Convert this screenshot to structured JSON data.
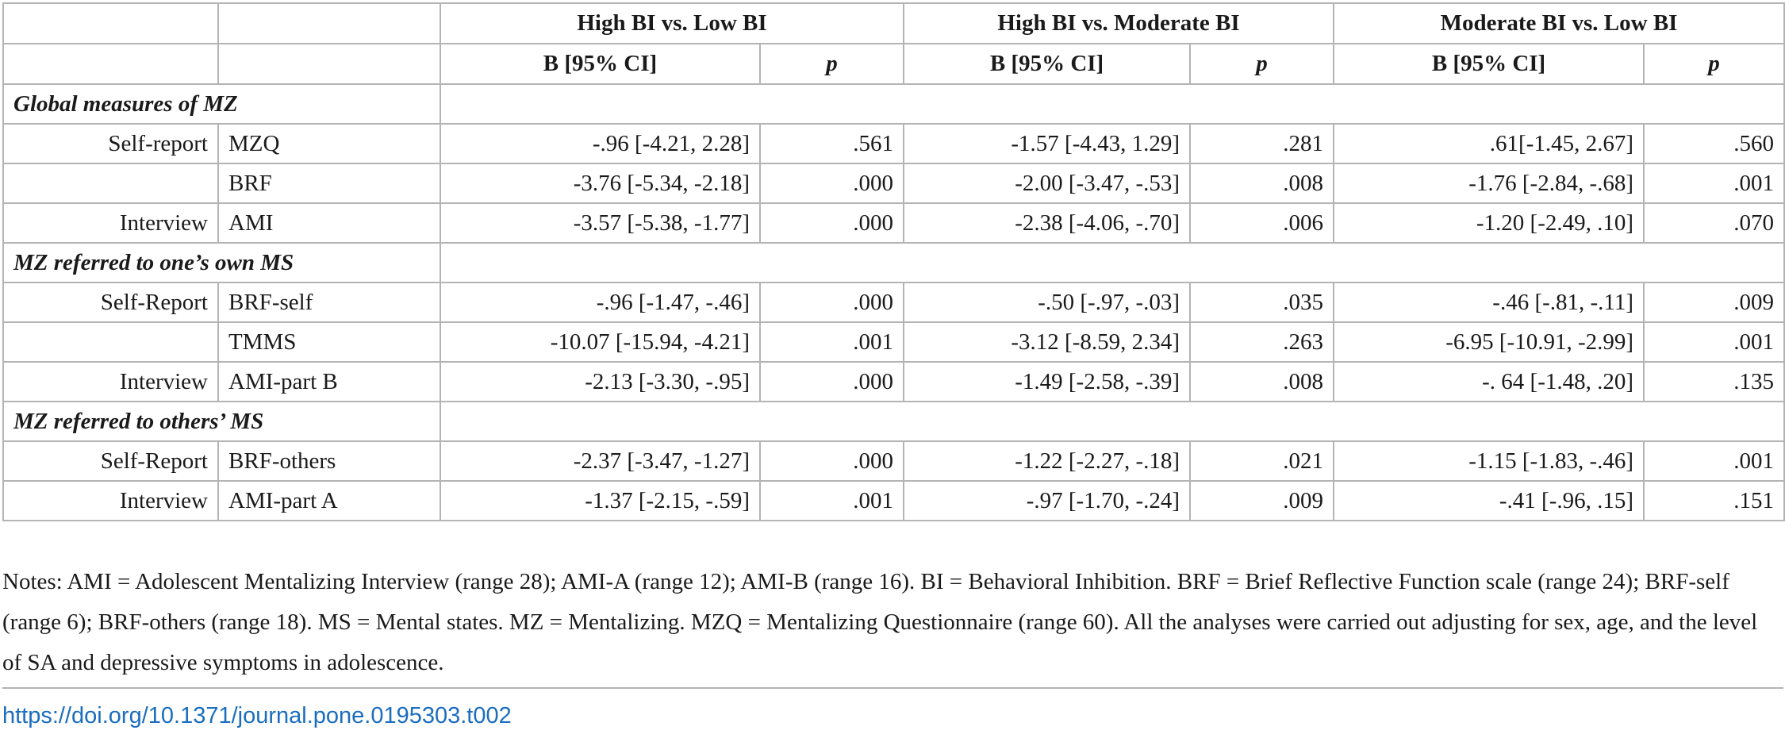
{
  "header": {
    "groups": [
      "High BI vs. Low BI",
      "High BI vs. Moderate BI",
      "Moderate BI vs. Low BI"
    ],
    "b_label": "B [95% CI]",
    "p_label": "p"
  },
  "sections": [
    {
      "title": "Global measures of MZ",
      "rows": [
        {
          "group": "Self-report",
          "measure": "MZQ",
          "values": [
            "-.96 [-4.21, 2.28]",
            ".561",
            "-1.57 [-4.43, 1.29]",
            ".281",
            ".61[-1.45, 2.67]",
            ".560"
          ]
        },
        {
          "group": "",
          "measure": "BRF",
          "values": [
            "-3.76 [-5.34, -2.18]",
            ".000",
            "-2.00 [-3.47, -.53]",
            ".008",
            "-1.76 [-2.84, -.68]",
            ".001"
          ]
        },
        {
          "group": "Interview",
          "measure": "AMI",
          "values": [
            "-3.57 [-5.38, -1.77]",
            ".000",
            "-2.38 [-4.06, -.70]",
            ".006",
            "-1.20 [-2.49, .10]",
            ".070"
          ]
        }
      ]
    },
    {
      "title": "MZ referred to one’s own MS",
      "rows": [
        {
          "group": "Self-Report",
          "measure": "BRF-self",
          "values": [
            "-.96 [-1.47, -.46]",
            ".000",
            "-.50 [-.97, -.03]",
            ".035",
            "-.46 [-.81, -.11]",
            ".009"
          ]
        },
        {
          "group": "",
          "measure": "TMMS",
          "values": [
            "-10.07 [-15.94, -4.21]",
            ".001",
            "-3.12 [-8.59, 2.34]",
            ".263",
            "-6.95 [-10.91, -2.99]",
            ".001"
          ]
        },
        {
          "group": "Interview",
          "measure": "AMI-part B",
          "values": [
            "-2.13 [-3.30, -.95]",
            ".000",
            "-1.49 [-2.58, -.39]",
            ".008",
            "-. 64 [-1.48, .20]",
            ".135"
          ]
        }
      ]
    },
    {
      "title": "MZ referred to others’ MS",
      "rows": [
        {
          "group": "Self-Report",
          "measure": "BRF-others",
          "values": [
            "-2.37 [-3.47, -1.27]",
            ".000",
            "-1.22 [-2.27, -.18]",
            ".021",
            "-1.15 [-1.83, -.46]",
            ".001"
          ]
        },
        {
          "group": "Interview",
          "measure": "AMI-part A",
          "values": [
            "-1.37 [-2.15, -.59]",
            ".001",
            "-.97 [-1.70, -.24]",
            ".009",
            "-.41 [-.96, .15]",
            ".151"
          ]
        }
      ]
    }
  ],
  "notes": "Notes: AMI = Adolescent Mentalizing Interview (range 28); AMI-A (range 12); AMI-B (range 16). BI = Behavioral Inhibition. BRF = Brief Reflective Function scale (range 24); BRF-self (range 6); BRF-others (range 18). MS = Mental states. MZ = Mentalizing. MZQ = Mentalizing Questionnaire (range 60). All the analyses were carried out adjusting for sex, age, and the level of SA and depressive symptoms in adolescence.",
  "doi": "https://doi.org/10.1371/journal.pone.0195303.t002"
}
